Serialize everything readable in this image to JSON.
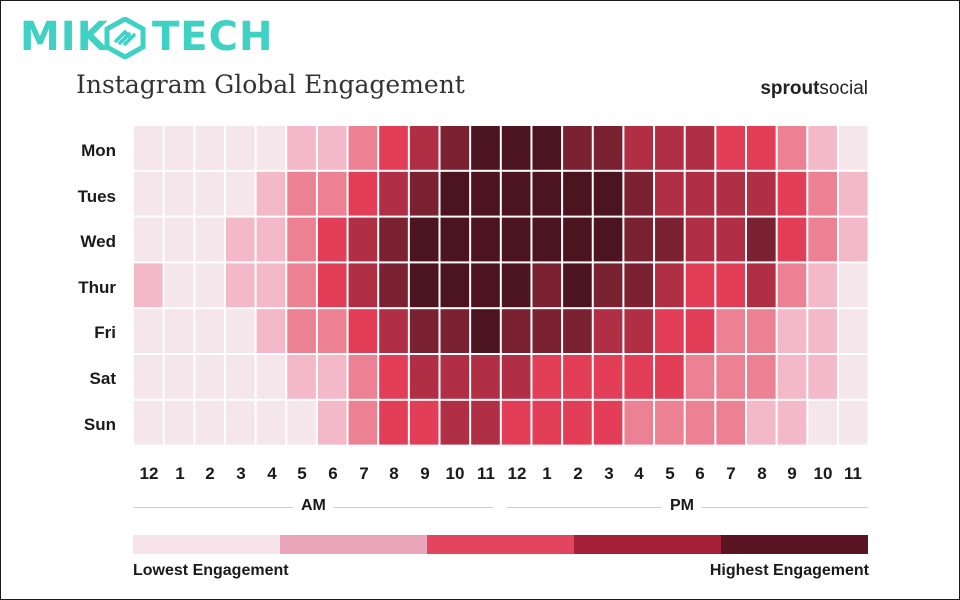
{
  "logo": {
    "text_left": "MIK",
    "text_right": "TECH",
    "color": "#3fd1c4",
    "icon": "hexagon-chain-icon"
  },
  "brand": {
    "bold": "sprout",
    "light": "social"
  },
  "chart_data": {
    "type": "heatmap",
    "title": "Instagram Global Engagement",
    "rows": [
      "Mon",
      "Tues",
      "Wed",
      "Thur",
      "Fri",
      "Sat",
      "Sun"
    ],
    "columns": [
      "12",
      "1",
      "2",
      "3",
      "4",
      "5",
      "6",
      "7",
      "8",
      "9",
      "10",
      "11",
      "12",
      "1",
      "2",
      "3",
      "4",
      "5",
      "6",
      "7",
      "8",
      "9",
      "10",
      "11"
    ],
    "periods": [
      "AM",
      "PM"
    ],
    "levels": [
      1,
      2,
      3,
      4,
      5
    ],
    "legend": {
      "low": "Lowest Engagement",
      "high": "Highest Engagement"
    },
    "colors": [
      "#f5e6eb",
      "#f3b9c8",
      "#ec8194",
      "#e33e57",
      "#b02f45",
      "#7a2232",
      "#4c1421"
    ],
    "values": [
      [
        0,
        0,
        0,
        0,
        0,
        1,
        1,
        2,
        3,
        4,
        5,
        6,
        6,
        6,
        5,
        5,
        4,
        4,
        4,
        3,
        3,
        2,
        1,
        0
      ],
      [
        0,
        0,
        0,
        0,
        1,
        2,
        2,
        3,
        4,
        5,
        6,
        6,
        6,
        6,
        6,
        6,
        5,
        4,
        4,
        4,
        4,
        3,
        2,
        1
      ],
      [
        0,
        0,
        0,
        1,
        1,
        2,
        3,
        4,
        5,
        6,
        6,
        6,
        6,
        6,
        6,
        6,
        5,
        5,
        4,
        4,
        5,
        3,
        2,
        1
      ],
      [
        1,
        0,
        0,
        1,
        1,
        2,
        3,
        4,
        5,
        6,
        6,
        6,
        6,
        5,
        6,
        5,
        5,
        4,
        3,
        3,
        4,
        2,
        1,
        0
      ],
      [
        0,
        0,
        0,
        0,
        1,
        2,
        2,
        3,
        4,
        5,
        5,
        6,
        5,
        5,
        5,
        4,
        4,
        3,
        3,
        2,
        2,
        1,
        1,
        0
      ],
      [
        0,
        0,
        0,
        0,
        0,
        1,
        1,
        2,
        3,
        4,
        4,
        4,
        4,
        3,
        3,
        3,
        3,
        3,
        2,
        2,
        2,
        1,
        1,
        0
      ],
      [
        0,
        0,
        0,
        0,
        0,
        0,
        1,
        2,
        3,
        3,
        4,
        4,
        3,
        3,
        3,
        3,
        2,
        2,
        2,
        2,
        1,
        1,
        0,
        0
      ]
    ]
  }
}
